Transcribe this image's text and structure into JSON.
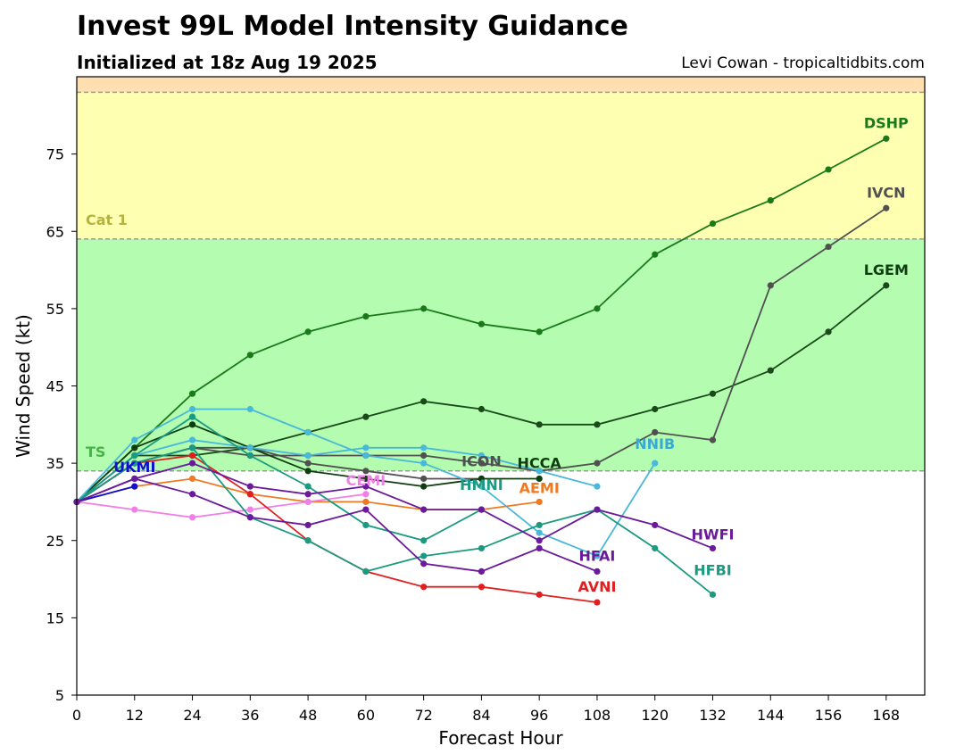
{
  "header": {
    "title": "Invest 99L Model Intensity Guidance",
    "subtitle": "Initialized at 18z Aug 19 2025",
    "credit": "Levi Cowan - tropicaltidbits.com"
  },
  "chart_data": {
    "type": "line",
    "xlabel": "Forecast Hour",
    "ylabel": "Wind Speed (kt)",
    "xlim": [
      0,
      176
    ],
    "ylim": [
      5,
      85
    ],
    "xticks": [
      0,
      12,
      24,
      36,
      48,
      60,
      72,
      84,
      96,
      108,
      120,
      132,
      144,
      156,
      168
    ],
    "yticks": [
      5,
      15,
      25,
      35,
      45,
      55,
      65,
      75
    ],
    "bands": [
      {
        "name": "TS",
        "from": 34,
        "to": 64,
        "color": "#b3fcb0",
        "label_color": "#4cb14c"
      },
      {
        "name": "Cat 1",
        "from": 64,
        "to": 83,
        "color": "#ffffb2",
        "label_color": "#b5b23e"
      },
      {
        "name": "",
        "from": 83,
        "to": 85,
        "color": "#ffdfb0",
        "label_color": "#c08040"
      }
    ],
    "series": [
      {
        "name": "DSHP",
        "color": "#1a7a1a",
        "label_color": "#1a7a1a",
        "x": [
          0,
          12,
          24,
          36,
          48,
          60,
          72,
          84,
          96,
          108,
          120,
          132,
          144,
          156,
          168
        ],
        "y": [
          30,
          37,
          44,
          49,
          52,
          54,
          55,
          53,
          52,
          55,
          62,
          66,
          69,
          73,
          77
        ]
      },
      {
        "name": "LGEM",
        "color": "#1a4a1a",
        "label_color": "#0f3d0f",
        "x": [
          0,
          12,
          24,
          36,
          48,
          60,
          72,
          84,
          96,
          108,
          120,
          132,
          144,
          156,
          168
        ],
        "y": [
          30,
          36,
          36,
          37,
          39,
          41,
          43,
          42,
          40,
          40,
          42,
          44,
          47,
          52,
          58
        ]
      },
      {
        "name": "IVCN",
        "color": "#505050",
        "label_color": "#505050",
        "x": [
          0,
          12,
          24,
          36,
          48,
          60,
          72,
          84,
          96,
          108,
          120,
          132,
          144,
          156,
          168
        ],
        "y": [
          30,
          35,
          37,
          36,
          36,
          36,
          36,
          35,
          34,
          35,
          39,
          38,
          58,
          63,
          68
        ]
      },
      {
        "name": "ICON",
        "color": "#505050",
        "label_color": "#505050",
        "x": [
          0,
          12,
          24,
          36,
          48,
          60,
          72,
          84
        ],
        "y": [
          30,
          35,
          37,
          37,
          35,
          34,
          33,
          33
        ]
      },
      {
        "name": "HCCA",
        "color": "#0f3d0f",
        "label_color": "#0f3d0f",
        "x": [
          0,
          12,
          24,
          36,
          48,
          60,
          72,
          84,
          96
        ],
        "y": [
          30,
          37,
          40,
          37,
          34,
          33,
          32,
          33,
          33
        ]
      },
      {
        "name": "NNIB",
        "color": "#4ab8d8",
        "label_color": "#3aa8d0",
        "x": [
          0,
          12,
          24,
          36,
          48,
          60,
          72,
          84,
          96,
          108,
          120
        ],
        "y": [
          30,
          38,
          42,
          42,
          39,
          36,
          35,
          32,
          26,
          23,
          35
        ]
      },
      {
        "name": "",
        "color": "#4ab8d8",
        "label_color": "#3aa8d0",
        "x": [
          0,
          12,
          24,
          36,
          48,
          60,
          72,
          84,
          96,
          108
        ],
        "y": [
          30,
          36,
          38,
          37,
          36,
          37,
          37,
          36,
          34,
          32
        ]
      },
      {
        "name": "AEMI",
        "color": "#f07a22",
        "label_color": "#f07a22",
        "x": [
          0,
          12,
          24,
          36,
          48,
          60,
          72,
          84,
          96
        ],
        "y": [
          30,
          32,
          33,
          31,
          30,
          30,
          29,
          29,
          30
        ]
      },
      {
        "name": "CEMI",
        "color": "#f080e8",
        "label_color": "#f080e8",
        "x": [
          0,
          12,
          24,
          36,
          48,
          60
        ],
        "y": [
          30,
          29,
          28,
          29,
          30,
          31
        ]
      },
      {
        "name": "UKMI",
        "color": "#1010d0",
        "label_color": "#1010d0",
        "x": [
          0,
          12
        ],
        "y": [
          30,
          32
        ]
      },
      {
        "name": "AVNI",
        "color": "#e02020",
        "label_color": "#e02020",
        "x": [
          0,
          12,
          24,
          36,
          48,
          60,
          72,
          84,
          96,
          108
        ],
        "y": [
          30,
          35,
          36,
          31,
          25,
          21,
          19,
          19,
          18,
          17
        ]
      },
      {
        "name": "HMNI",
        "color": "#1a9a80",
        "label_color": "#1a9a80",
        "x": [
          0,
          12,
          24,
          36,
          48,
          60,
          72,
          84
        ],
        "y": [
          30,
          36,
          41,
          36,
          32,
          27,
          25,
          29
        ]
      },
      {
        "name": "HFBI",
        "color": "#1a9a80",
        "label_color": "#1a9a80",
        "x": [
          0,
          12,
          24,
          36,
          48,
          60,
          72,
          84,
          96,
          108,
          120,
          132
        ],
        "y": [
          30,
          35,
          37,
          28,
          25,
          21,
          23,
          24,
          27,
          29,
          24,
          18
        ]
      },
      {
        "name": "HWFI",
        "color": "#6a1a9a",
        "label_color": "#6a1a9a",
        "x": [
          0,
          12,
          24,
          36,
          48,
          60,
          72,
          84,
          96,
          108,
          120,
          132
        ],
        "y": [
          30,
          33,
          35,
          32,
          31,
          32,
          29,
          29,
          25,
          29,
          27,
          24
        ]
      },
      {
        "name": "HFAI",
        "color": "#6a1a9a",
        "label_color": "#6a1a9a",
        "x": [
          0,
          12,
          24,
          36,
          48,
          60,
          72,
          84,
          96,
          108
        ],
        "y": [
          30,
          33,
          31,
          28,
          27,
          29,
          22,
          21,
          24,
          21
        ]
      }
    ],
    "grid": false,
    "legend": "none (inline labels)"
  }
}
